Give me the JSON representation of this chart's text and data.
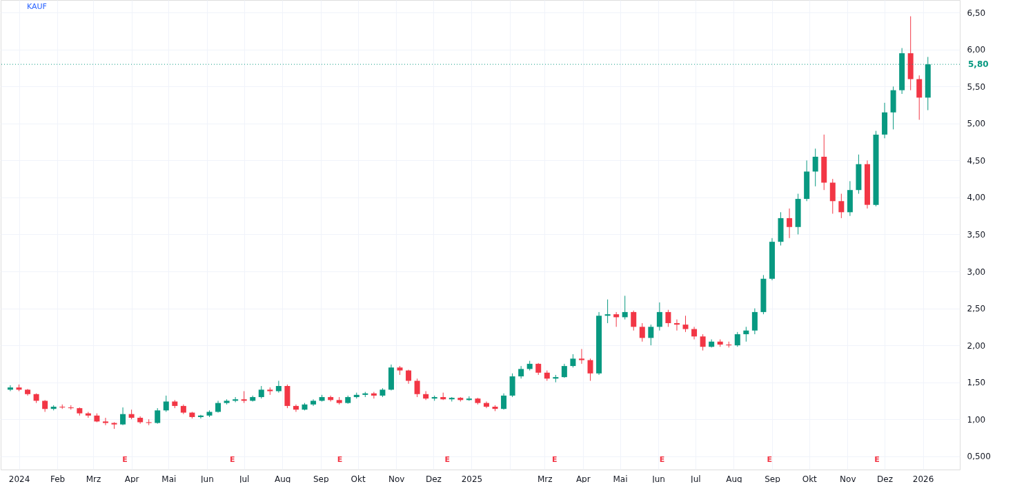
{
  "chart_data": {
    "type": "candlestick",
    "x": [
      "2023-12-25",
      "2024-01-01",
      "2024-01-08",
      "2024-01-15",
      "2024-01-22",
      "2024-01-29",
      "2024-02-05",
      "2024-02-12",
      "2024-02-19",
      "2024-02-26",
      "2024-03-04",
      "2024-03-11",
      "2024-03-18",
      "2024-03-25",
      "2024-04-01",
      "2024-04-08",
      "2024-04-15",
      "2024-04-22",
      "2024-04-29",
      "2024-05-06",
      "2024-05-13",
      "2024-05-20",
      "2024-05-27",
      "2024-06-03",
      "2024-06-10",
      "2024-06-17",
      "2024-06-24",
      "2024-07-01",
      "2024-07-08",
      "2024-07-15",
      "2024-07-22",
      "2024-07-29",
      "2024-08-05",
      "2024-08-12",
      "2024-08-19",
      "2024-08-26",
      "2024-09-02",
      "2024-09-09",
      "2024-09-16",
      "2024-09-23",
      "2024-09-30",
      "2024-10-07",
      "2024-10-14",
      "2024-10-21",
      "2024-10-28",
      "2024-11-04",
      "2024-11-11",
      "2024-11-18",
      "2024-11-25",
      "2024-12-02",
      "2024-12-09",
      "2024-12-16",
      "2024-12-23",
      "2024-12-30",
      "2025-01-06",
      "2025-01-13",
      "2025-01-20",
      "2025-01-27",
      "2025-02-03",
      "2025-02-10",
      "2025-02-17",
      "2025-02-24",
      "2025-03-03",
      "2025-03-10",
      "2025-03-17",
      "2025-03-24",
      "2025-03-31",
      "2025-04-07",
      "2025-04-14",
      "2025-04-21",
      "2025-04-28",
      "2025-05-05",
      "2025-05-12",
      "2025-05-19",
      "2025-05-26",
      "2025-06-02",
      "2025-06-09",
      "2025-06-16",
      "2025-06-23",
      "2025-06-30",
      "2025-07-07",
      "2025-07-14",
      "2025-07-21",
      "2025-07-28",
      "2025-08-04",
      "2025-08-11",
      "2025-08-18",
      "2025-08-25",
      "2025-09-01",
      "2025-09-08",
      "2025-09-15",
      "2025-09-22",
      "2025-09-29",
      "2025-10-06",
      "2025-10-13",
      "2025-10-20",
      "2025-10-27",
      "2025-11-03",
      "2025-11-10",
      "2025-11-17",
      "2025-11-24",
      "2025-12-01",
      "2025-12-08",
      "2025-12-15",
      "2025-12-22",
      "2025-12-29",
      "2026-01-05"
    ],
    "ohlc": [
      [
        1.4,
        1.46,
        1.38,
        1.43
      ],
      [
        1.43,
        1.47,
        1.38,
        1.4
      ],
      [
        1.4,
        1.41,
        1.32,
        1.34
      ],
      [
        1.34,
        1.35,
        1.22,
        1.25
      ],
      [
        1.25,
        1.26,
        1.1,
        1.14
      ],
      [
        1.14,
        1.19,
        1.12,
        1.17
      ],
      [
        1.17,
        1.2,
        1.14,
        1.16
      ],
      [
        1.16,
        1.19,
        1.13,
        1.15
      ],
      [
        1.15,
        1.16,
        1.05,
        1.08
      ],
      [
        1.08,
        1.1,
        1.02,
        1.05
      ],
      [
        1.05,
        1.08,
        0.96,
        0.97
      ],
      [
        0.97,
        1.02,
        0.92,
        0.95
      ],
      [
        0.95,
        0.96,
        0.87,
        0.93
      ],
      [
        0.93,
        1.16,
        0.92,
        1.07
      ],
      [
        1.07,
        1.13,
        1.0,
        1.02
      ],
      [
        1.02,
        1.04,
        0.94,
        0.96
      ],
      [
        0.96,
        1.0,
        0.92,
        0.95
      ],
      [
        0.95,
        1.15,
        0.94,
        1.12
      ],
      [
        1.12,
        1.32,
        1.1,
        1.24
      ],
      [
        1.24,
        1.26,
        1.15,
        1.18
      ],
      [
        1.18,
        1.2,
        1.07,
        1.09
      ],
      [
        1.09,
        1.1,
        1.01,
        1.03
      ],
      [
        1.03,
        1.06,
        1.01,
        1.05
      ],
      [
        1.05,
        1.12,
        1.03,
        1.1
      ],
      [
        1.1,
        1.25,
        1.09,
        1.22
      ],
      [
        1.22,
        1.27,
        1.2,
        1.25
      ],
      [
        1.25,
        1.3,
        1.23,
        1.27
      ],
      [
        1.27,
        1.38,
        1.22,
        1.25
      ],
      [
        1.25,
        1.32,
        1.24,
        1.3
      ],
      [
        1.3,
        1.45,
        1.28,
        1.4
      ],
      [
        1.4,
        1.43,
        1.33,
        1.38
      ],
      [
        1.38,
        1.52,
        1.36,
        1.45
      ],
      [
        1.45,
        1.47,
        1.15,
        1.18
      ],
      [
        1.18,
        1.2,
        1.1,
        1.13
      ],
      [
        1.13,
        1.22,
        1.12,
        1.2
      ],
      [
        1.2,
        1.27,
        1.18,
        1.25
      ],
      [
        1.25,
        1.33,
        1.24,
        1.3
      ],
      [
        1.3,
        1.32,
        1.24,
        1.26
      ],
      [
        1.26,
        1.3,
        1.2,
        1.22
      ],
      [
        1.22,
        1.32,
        1.21,
        1.3
      ],
      [
        1.3,
        1.36,
        1.28,
        1.33
      ],
      [
        1.33,
        1.37,
        1.3,
        1.35
      ],
      [
        1.35,
        1.37,
        1.28,
        1.32
      ],
      [
        1.32,
        1.42,
        1.3,
        1.4
      ],
      [
        1.4,
        1.74,
        1.39,
        1.7
      ],
      [
        1.7,
        1.72,
        1.6,
        1.66
      ],
      [
        1.66,
        1.67,
        1.48,
        1.52
      ],
      [
        1.52,
        1.55,
        1.3,
        1.34
      ],
      [
        1.34,
        1.38,
        1.26,
        1.28
      ],
      [
        1.28,
        1.32,
        1.25,
        1.3
      ],
      [
        1.3,
        1.36,
        1.26,
        1.27
      ],
      [
        1.27,
        1.3,
        1.24,
        1.29
      ],
      [
        1.29,
        1.3,
        1.24,
        1.26
      ],
      [
        1.26,
        1.31,
        1.25,
        1.28
      ],
      [
        1.28,
        1.29,
        1.2,
        1.22
      ],
      [
        1.22,
        1.24,
        1.15,
        1.17
      ],
      [
        1.17,
        1.19,
        1.11,
        1.14
      ],
      [
        1.14,
        1.35,
        1.13,
        1.32
      ],
      [
        1.32,
        1.62,
        1.3,
        1.58
      ],
      [
        1.58,
        1.72,
        1.55,
        1.68
      ],
      [
        1.68,
        1.79,
        1.66,
        1.75
      ],
      [
        1.75,
        1.76,
        1.6,
        1.63
      ],
      [
        1.63,
        1.66,
        1.52,
        1.55
      ],
      [
        1.55,
        1.6,
        1.5,
        1.57
      ],
      [
        1.57,
        1.75,
        1.56,
        1.72
      ],
      [
        1.72,
        1.88,
        1.7,
        1.82
      ],
      [
        1.82,
        1.95,
        1.75,
        1.8
      ],
      [
        1.8,
        1.82,
        1.52,
        1.62
      ],
      [
        1.62,
        2.45,
        1.6,
        2.4
      ],
      [
        2.4,
        2.62,
        2.3,
        2.42
      ],
      [
        2.42,
        2.45,
        2.25,
        2.38
      ],
      [
        2.38,
        2.67,
        2.35,
        2.45
      ],
      [
        2.45,
        2.47,
        2.2,
        2.25
      ],
      [
        2.25,
        2.3,
        2.05,
        2.1
      ],
      [
        2.1,
        2.28,
        2.0,
        2.25
      ],
      [
        2.25,
        2.58,
        2.2,
        2.45
      ],
      [
        2.45,
        2.48,
        2.25,
        2.3
      ],
      [
        2.3,
        2.35,
        2.2,
        2.28
      ],
      [
        2.28,
        2.4,
        2.18,
        2.22
      ],
      [
        2.22,
        2.25,
        2.08,
        2.12
      ],
      [
        2.12,
        2.15,
        1.93,
        1.98
      ],
      [
        1.98,
        2.08,
        1.97,
        2.05
      ],
      [
        2.05,
        2.08,
        1.98,
        2.01
      ],
      [
        2.01,
        2.05,
        1.97,
        2.0
      ],
      [
        2.0,
        2.18,
        1.98,
        2.15
      ],
      [
        2.15,
        2.25,
        2.05,
        2.2
      ],
      [
        2.2,
        2.5,
        2.15,
        2.45
      ],
      [
        2.45,
        2.95,
        2.42,
        2.9
      ],
      [
        2.9,
        3.45,
        2.88,
        3.4
      ],
      [
        3.4,
        3.8,
        3.35,
        3.72
      ],
      [
        3.72,
        3.85,
        3.45,
        3.6
      ],
      [
        3.6,
        4.05,
        3.5,
        3.98
      ],
      [
        3.98,
        4.5,
        3.95,
        4.35
      ],
      [
        4.35,
        4.66,
        4.15,
        4.55
      ],
      [
        4.55,
        4.85,
        4.1,
        4.2
      ],
      [
        4.2,
        4.25,
        3.78,
        3.95
      ],
      [
        3.95,
        4.05,
        3.72,
        3.8
      ],
      [
        3.8,
        4.22,
        3.75,
        4.1
      ],
      [
        4.1,
        4.58,
        4.05,
        4.45
      ],
      [
        4.45,
        4.5,
        3.85,
        3.9
      ],
      [
        3.9,
        4.9,
        3.88,
        4.85
      ],
      [
        4.85,
        5.28,
        4.8,
        5.15
      ],
      [
        5.15,
        5.5,
        4.92,
        5.45
      ],
      [
        5.45,
        6.02,
        5.4,
        5.95
      ],
      [
        5.95,
        6.45,
        5.45,
        5.6
      ],
      [
        5.6,
        5.65,
        5.05,
        5.35
      ],
      [
        5.35,
        5.9,
        5.18,
        5.8
      ]
    ],
    "xlim": [
      "2023-12-20",
      "2026-01-28"
    ],
    "xticks": [
      {
        "value": "2024-01-01",
        "label": "2024"
      },
      {
        "value": "2024-02-01",
        "label": "Feb"
      },
      {
        "value": "2024-03-01",
        "label": "Mrz"
      },
      {
        "value": "2024-04-01",
        "label": "Apr"
      },
      {
        "value": "2024-05-01",
        "label": "Mai"
      },
      {
        "value": "2024-06-01",
        "label": "Jun"
      },
      {
        "value": "2024-07-01",
        "label": "Jul"
      },
      {
        "value": "2024-08-01",
        "label": "Aug"
      },
      {
        "value": "2024-09-01",
        "label": "Sep"
      },
      {
        "value": "2024-10-01",
        "label": "Okt"
      },
      {
        "value": "2024-11-01",
        "label": "Nov"
      },
      {
        "value": "2024-12-01",
        "label": "Dez"
      },
      {
        "value": "2025-01-01",
        "label": "2025"
      },
      {
        "value": "2025-02-01",
        "label": null
      },
      {
        "value": "2025-03-01",
        "label": "Mrz"
      },
      {
        "value": "2025-04-01",
        "label": "Apr"
      },
      {
        "value": "2025-05-01",
        "label": "Mai"
      },
      {
        "value": "2025-06-01",
        "label": "Jun"
      },
      {
        "value": "2025-07-01",
        "label": "Jul"
      },
      {
        "value": "2025-08-01",
        "label": "Aug"
      },
      {
        "value": "2025-09-01",
        "label": "Sep"
      },
      {
        "value": "2025-10-01",
        "label": "Okt"
      },
      {
        "value": "2025-11-01",
        "label": "Nov"
      },
      {
        "value": "2025-12-01",
        "label": "Dez"
      },
      {
        "value": "2026-01-01",
        "label": "2026"
      }
    ],
    "ylim": [
      0.32,
      6.67
    ],
    "yticks": [
      {
        "value": 0.5,
        "label": "0,500"
      },
      {
        "value": 1,
        "label": "1,00"
      },
      {
        "value": 1.5,
        "label": "1,50"
      },
      {
        "value": 2,
        "label": "2,00"
      },
      {
        "value": 2.5,
        "label": "2,50"
      },
      {
        "value": 3,
        "label": "3,00"
      },
      {
        "value": 3.5,
        "label": "3,50"
      },
      {
        "value": 4,
        "label": "4,00"
      },
      {
        "value": 4.5,
        "label": "4,50"
      },
      {
        "value": 5,
        "label": "5,00"
      },
      {
        "value": 5.5,
        "label": "5,50"
      },
      {
        "value": 6,
        "label": "6,00"
      },
      {
        "value": 6.5,
        "label": "6,50"
      }
    ],
    "grid": true,
    "ref_lines": [
      {
        "axis": "y",
        "value": 5.8,
        "label": "5,80",
        "color": "#089981",
        "line_style": "dotted"
      }
    ],
    "annotations": [
      "KAUF",
      "E",
      "E",
      "E",
      "E",
      "E",
      "E",
      "E",
      "E"
    ]
  }
}
